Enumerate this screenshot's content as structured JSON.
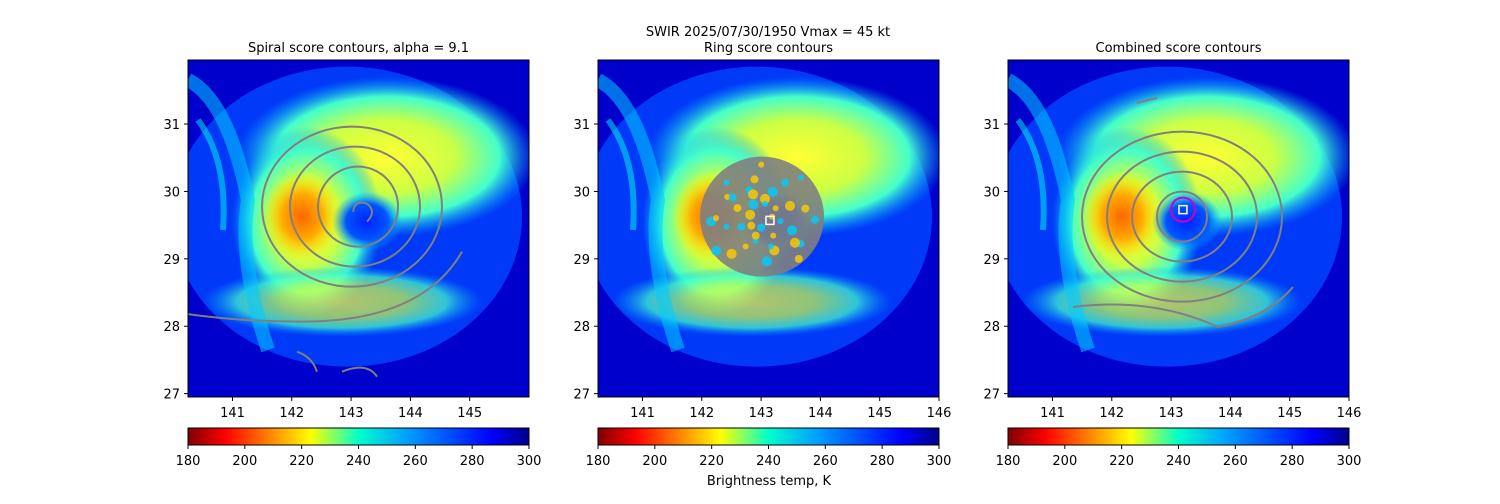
{
  "figure": {
    "suptitle_line1": "SWIR  2025/07/30/1950    Vmax = 45 kt",
    "colorbar_label": "Brightness temp, K",
    "colorbar_ticks": [
      "180",
      "200",
      "220",
      "240",
      "260",
      "280",
      "300"
    ]
  },
  "chart_data": [
    {
      "type": "heatmap",
      "title": "Spiral score contours, alpha =  9.1",
      "x_ticks": [
        "141",
        "142",
        "143",
        "144",
        "145"
      ],
      "y_ticks": [
        "27",
        "28",
        "29",
        "30",
        "31"
      ],
      "xlim": [
        140.25,
        146.0
      ],
      "ylim": [
        26.95,
        31.95
      ],
      "colorbar": {
        "min": 180,
        "max": 300,
        "colormap": "jet_r"
      },
      "storm_center": [
        143.1,
        29.7
      ],
      "overlay": "spiral-contours",
      "contour_color": "#808080"
    },
    {
      "type": "heatmap",
      "title": "Ring score contours",
      "x_ticks": [
        "141",
        "142",
        "143",
        "144",
        "145",
        "146"
      ],
      "y_ticks": [
        "27",
        "28",
        "29",
        "30",
        "31"
      ],
      "xlim": [
        140.25,
        146.0
      ],
      "ylim": [
        26.95,
        31.95
      ],
      "colorbar": {
        "min": 180,
        "max": 300,
        "colormap": "jet_r"
      },
      "storm_center": [
        143.1,
        29.7
      ],
      "overlay": "ring-contours",
      "contour_color": "#808080",
      "marker": {
        "x": 143.15,
        "y": 29.57,
        "shape": "square",
        "color": "#ffffff"
      }
    },
    {
      "type": "heatmap",
      "title": "Combined score contours",
      "x_ticks": [
        "141",
        "142",
        "143",
        "144",
        "145",
        "146"
      ],
      "y_ticks": [
        "27",
        "28",
        "29",
        "30",
        "31"
      ],
      "xlim": [
        140.25,
        146.0
      ],
      "ylim": [
        26.95,
        31.95
      ],
      "colorbar": {
        "min": 180,
        "max": 300,
        "colormap": "jet_r"
      },
      "storm_center": [
        143.1,
        29.7
      ],
      "overlay": "combined-contours",
      "contour_color": "#808080",
      "marker": {
        "x": 143.2,
        "y": 29.73,
        "shape": "square",
        "color": "#ffffff"
      },
      "circle": {
        "x": 143.2,
        "y": 29.73,
        "color": "#cc00cc"
      }
    }
  ]
}
